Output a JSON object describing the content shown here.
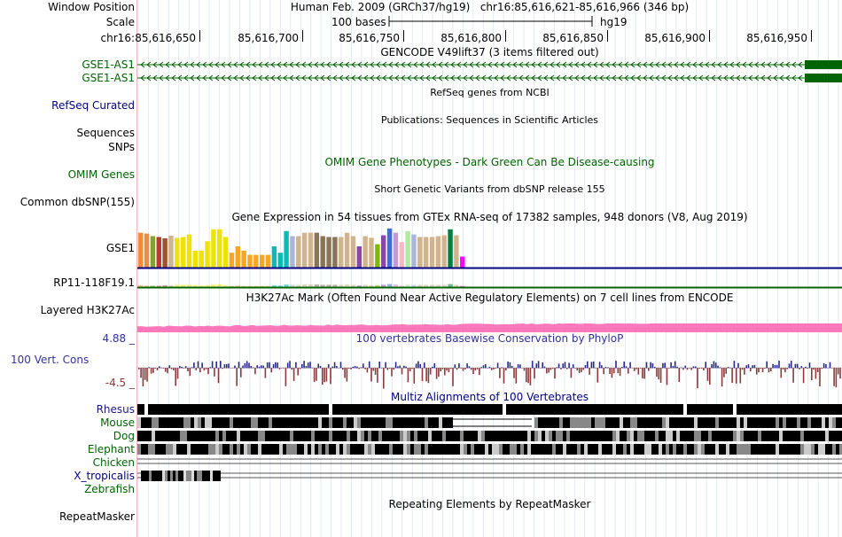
{
  "labels": {
    "window_position": "Window Position",
    "scale": "Scale",
    "chrom": "chr16:",
    "gene_1": "GSE1-AS1",
    "gene_2": "GSE1-AS1",
    "refseq": "RefSeq Curated",
    "sequences": "Sequences",
    "snps": "SNPs",
    "omim": "OMIM Genes",
    "dbsnp": "Common dbSNP(155)",
    "gse1": "GSE1",
    "rp11": "RP11-118F19.1",
    "h3k27ac": "Layered H3K27Ac",
    "cons_max": "4.88 _",
    "cons": "100 Vert. Cons",
    "cons_min": "-4.5 _",
    "rhesus": "Rhesus",
    "mouse": "Mouse",
    "dog": "Dog",
    "elephant": "Elephant",
    "chicken": "Chicken",
    "xtrop": "X_tropicalis",
    "zebrafish": "Zebrafish",
    "repeatmasker": "RepeatMasker"
  },
  "header": {
    "assembly_title": "Human Feb. 2009 (GRCh37/hg19)",
    "position": "chr16:85,616,621-85,616,966 (346 bp)",
    "scale_bar": "100 bases",
    "scale_db": "hg19",
    "ticks": [
      "85,616,650",
      "85,616,700",
      "85,616,750",
      "85,616,800",
      "85,616,850",
      "85,616,900",
      "85,616,950"
    ]
  },
  "tracks": {
    "gencode": "GENCODE V49lift37 (3 items filtered out)",
    "refseq": "RefSeq genes from NCBI",
    "publications": "Publications: Sequences in Scientific Articles",
    "omim": "OMIM Gene Phenotypes - Dark Green Can Be Disease-causing",
    "dbsnp": "Short Genetic Variants from dbSNP release 155",
    "gtex": "Gene Expression in 54 tissues from GTEx RNA-seq of 17382 samples, 948 donors (V8, Aug 2019)",
    "h3k27ac": "H3K27Ac Mark (Often Found Near Active Regulatory Elements) on 7 cell lines from ENCODE",
    "phylop": "100 vertebrates Basewise Conservation by PhyloP",
    "multiz": "Multiz Alignments of 100 Vertebrates",
    "repeatmasker": "Repeating Elements by RepeatMasker"
  },
  "colors": {
    "gene": "#006400",
    "conservation_pos": "#2a2a8c",
    "conservation_neg": "#8c3a3a",
    "h3k27ac": "#ff69b4",
    "label_navy": "#000080",
    "label_blue": "#333399"
  },
  "chart_data": {
    "type": "bar",
    "title": "Gene Expression in 54 tissues from GTEx RNA-seq of 17382 samples, 948 donors (V8, Aug 2019)",
    "xlabel": "",
    "ylabel": "",
    "ylim": [
      0,
      100
    ],
    "series": [
      {
        "name": "GSE1",
        "values": [
          82,
          80,
          74,
          72,
          69,
          75,
          70,
          72,
          78,
          40,
          40,
          62,
          90,
          90,
          72,
          35,
          50,
          40,
          30,
          30,
          30,
          30,
          50,
          35,
          86,
          74,
          74,
          82,
          82,
          82,
          74,
          72,
          72,
          72,
          82,
          74,
          50,
          74,
          70,
          55,
          76,
          92,
          82,
          60,
          86,
          78,
          72,
          72,
          72,
          74,
          76,
          90,
          76,
          26
        ],
        "colors": [
          "#f28c3a",
          "#f28c3a",
          "#7fa336",
          "#c0392b",
          "#a0522d",
          "#d2b48c",
          "#f0e10a",
          "#f0e10a",
          "#f0e10a",
          "#f0e10a",
          "#f0e10a",
          "#f0e10a",
          "#f0e10a",
          "#f0e10a",
          "#f0e10a",
          "#f5a623",
          "#f5a623",
          "#f5a623",
          "#f5a623",
          "#f5a623",
          "#f5a623",
          "#f5a623",
          "#0abab5",
          "#0abab5",
          "#0abab5",
          "#a9b6d8",
          "#d2b48c",
          "#d2b48c",
          "#d2b48c",
          "#8b7355",
          "#8b7355",
          "#8b7355",
          "#8b7355",
          "#d2b48c",
          "#d2b48c",
          "#d2b48c",
          "#8e44ad",
          "#d2b48c",
          "#d2b48c",
          "#7fba00",
          "#8e44ad",
          "#4169e1",
          "#c39bd3",
          "#ffb6c1",
          "#b5e8a0",
          "#a9b6d8",
          "#d2b48c",
          "#d2b48c",
          "#d2b48c",
          "#d2b48c",
          "#d2b48c",
          "#008040",
          "#d2b48c",
          "#ff00ff"
        ]
      },
      {
        "name": "RP11-118F19.1",
        "values": [
          10,
          8,
          8,
          7,
          10,
          10,
          12,
          12,
          12,
          10,
          8,
          10,
          15,
          15,
          10,
          6,
          8,
          6,
          6,
          6,
          6,
          6,
          10,
          8,
          14,
          12,
          12,
          14,
          14,
          14,
          12,
          12,
          12,
          12,
          14,
          12,
          8,
          12,
          10,
          10,
          12,
          16,
          14,
          10,
          14,
          12,
          12,
          12,
          12,
          12,
          12,
          16,
          12,
          6
        ]
      }
    ]
  }
}
